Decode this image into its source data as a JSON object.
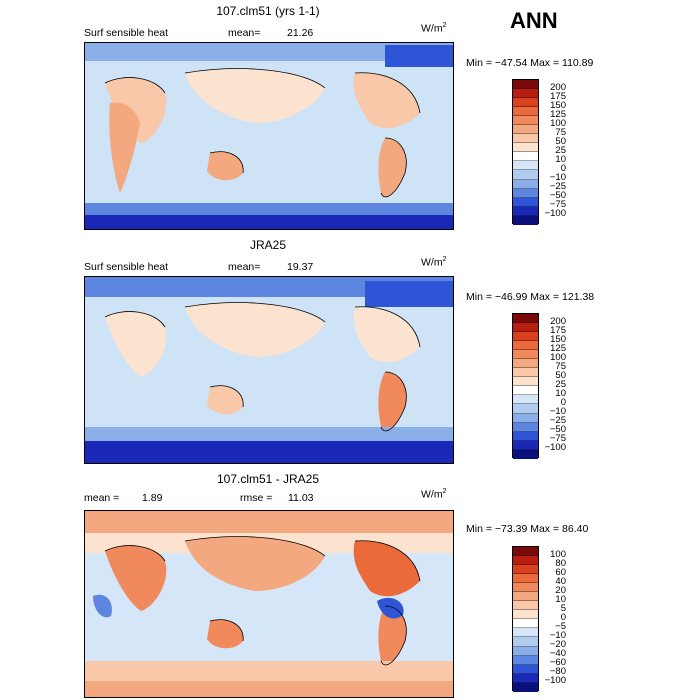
{
  "season": "ANN",
  "units": "W/m",
  "units_sup": "2",
  "panels": [
    {
      "title": "107.clm51 (yrs 1-1)",
      "left_label": "Surf sensible heat",
      "mean_label": "mean=",
      "mean_value": "21.26",
      "stats": "Min = −47.54  Max = 110.89",
      "colorbar": {
        "labels": [
          "200",
          "175",
          "150",
          "125",
          "100",
          "75",
          "50",
          "25",
          "10",
          "0",
          "−10",
          "−25",
          "−50",
          "−75",
          "−100"
        ],
        "colors": [
          "#7a0a0a",
          "#b81e10",
          "#d9401e",
          "#ea6a3c",
          "#f08a5d",
          "#f4a880",
          "#f8c8a8",
          "#fbe3d0",
          "#ffffff",
          "#d4e6f7",
          "#b0cdf0",
          "#8aaee8",
          "#5d86e0",
          "#2f55d6",
          "#1a28b8",
          "#0b0f7a"
        ]
      }
    },
    {
      "title": "JRA25",
      "left_label": "Surf sensible heat",
      "mean_label": "mean=",
      "mean_value": "19.37",
      "stats": "Min = −46.99  Max = 121.38",
      "colorbar": {
        "labels": [
          "200",
          "175",
          "150",
          "125",
          "100",
          "75",
          "50",
          "25",
          "10",
          "0",
          "−10",
          "−25",
          "−50",
          "−75",
          "−100"
        ],
        "colors": [
          "#7a0a0a",
          "#b81e10",
          "#d9401e",
          "#ea6a3c",
          "#f08a5d",
          "#f4a880",
          "#f8c8a8",
          "#fbe3d0",
          "#ffffff",
          "#d4e6f7",
          "#b0cdf0",
          "#8aaee8",
          "#5d86e0",
          "#2f55d6",
          "#1a28b8",
          "#0b0f7a"
        ]
      }
    },
    {
      "title": "107.clm51 - JRA25",
      "left_label": "mean =",
      "mean_label": "",
      "mean_value": "1.89",
      "rmse_label": "rmse =",
      "rmse_value": "11.03",
      "stats": "Min = −73.39  Max =  86.40",
      "colorbar": {
        "labels": [
          "100",
          "80",
          "60",
          "40",
          "20",
          "10",
          "5",
          "0",
          "−5",
          "−10",
          "−20",
          "−40",
          "−60",
          "−80",
          "−100"
        ],
        "colors": [
          "#7a0a0a",
          "#b81e10",
          "#d9401e",
          "#ea6a3c",
          "#f08a5d",
          "#f4a880",
          "#f8c8a8",
          "#fbe3d0",
          "#ffffff",
          "#d4e6f7",
          "#b0cdf0",
          "#8aaee8",
          "#5d86e0",
          "#2f55d6",
          "#1a28b8",
          "#0b0f7a"
        ]
      }
    }
  ]
}
